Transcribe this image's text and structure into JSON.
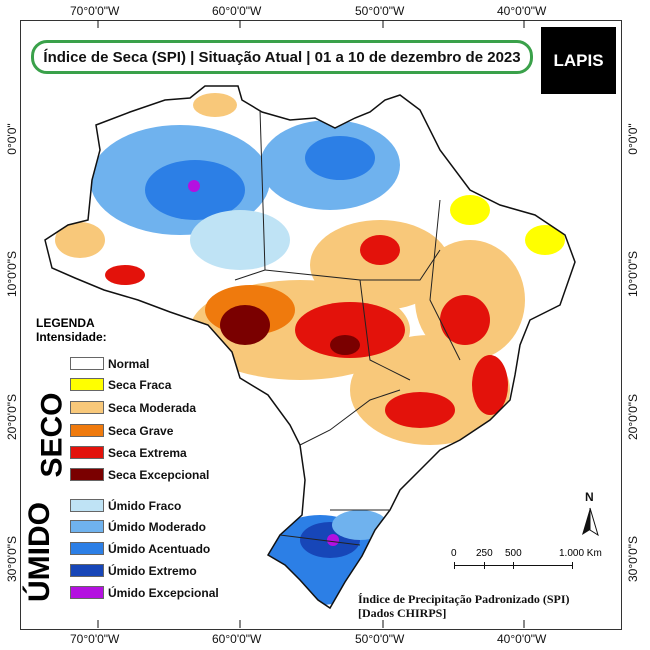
{
  "title": "Índice de Seca (SPI) | Situação Atual | 01 a 10 de dezembro de 2023",
  "logo_text": "LAPIS",
  "axis": {
    "top_ticks": [
      "70°0'0\"W",
      "60°0'0\"W",
      "50°0'0\"W",
      "40°0'0\"W"
    ],
    "bottom_ticks": [
      "70°0'0\"W",
      "60°0'0\"W",
      "50°0'0\"W",
      "40°0'0\"W"
    ],
    "left_ticks": [
      "0°0'0\"",
      "10°0'0\"S",
      "20°0'0\"S",
      "30°0'0\"S"
    ],
    "right_ticks": [
      "0°0'0\"",
      "10°0'0\"S",
      "20°0'0\"S",
      "30°0'0\"S"
    ]
  },
  "legend": {
    "title_line1": "LEGENDA",
    "title_line2": "Intensidade:",
    "seco_label": "SECO",
    "umido_label": "ÚMIDO",
    "items": [
      {
        "label": "Normal",
        "color": "#ffffff"
      },
      {
        "label": "Seca Fraca",
        "color": "#ffff00"
      },
      {
        "label": "Seca Moderada",
        "color": "#f8c87a"
      },
      {
        "label": "Seca Grave",
        "color": "#ef7a0d"
      },
      {
        "label": "Seca Extrema",
        "color": "#e3120b"
      },
      {
        "label": "Seca Excepcional",
        "color": "#7a0000"
      },
      {
        "label": "Úmido Fraco",
        "color": "#bfe3f5"
      },
      {
        "label": "Úmido Moderado",
        "color": "#6fb2ee"
      },
      {
        "label": "Úmido Acentuado",
        "color": "#2c7fe6"
      },
      {
        "label": "Úmido Extremo",
        "color": "#1746b8"
      },
      {
        "label": "Úmido Excepcional",
        "color": "#b410e0"
      }
    ]
  },
  "scale": {
    "ticks": [
      "0",
      "250",
      "500",
      "1.000 Km"
    ]
  },
  "north_label": "N",
  "subtitle_line1": "Índice de Precipitação Padronizado (SPI)",
  "subtitle_line2": "[Dados CHIRPS]"
}
